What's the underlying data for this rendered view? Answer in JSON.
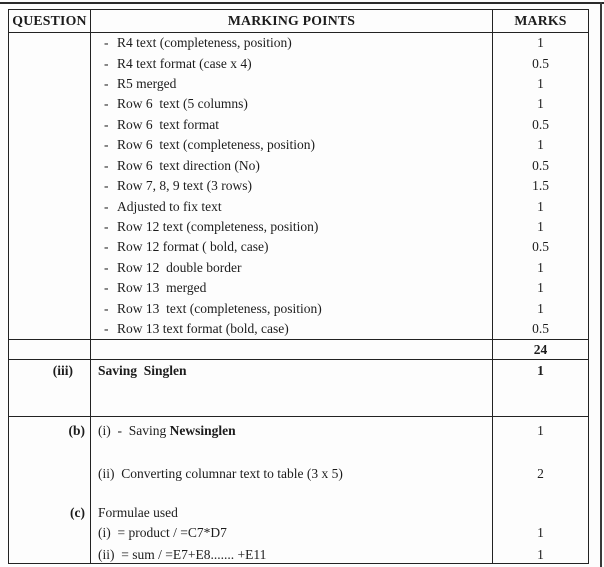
{
  "header": {
    "question": "QUESTION",
    "marking_points": "MARKING POINTS",
    "marks": "MARKS"
  },
  "bullet": "-",
  "marking_block": {
    "rows": [
      {
        "text": "R4 text (completeness, position)",
        "mark": "1"
      },
      {
        "text": "R4 text format (case x 4)",
        "mark": "0.5"
      },
      {
        "text": "R5 merged",
        "mark": "1"
      },
      {
        "text": "Row 6  text (5 columns)",
        "mark": "1"
      },
      {
        "text": "Row 6  text format",
        "mark": "0.5"
      },
      {
        "text": "Row 6  text (completeness, position)",
        "mark": "1"
      },
      {
        "text": "Row 6  text direction (No)",
        "mark": "0.5"
      },
      {
        "text": "Row 7, 8, 9 text (3 rows)",
        "mark": "1.5"
      },
      {
        "text": "Adjusted to fix text",
        "mark": "1"
      },
      {
        "text": "Row 12 text (completeness, position)",
        "mark": "1"
      },
      {
        "text": "Row 12 format ( bold, case)",
        "mark": "0.5"
      },
      {
        "text": "Row 12  double border",
        "mark": "1"
      },
      {
        "text": "Row 13  merged",
        "mark": "1"
      },
      {
        "text": "Row 13  text (completeness, position)",
        "mark": "1"
      },
      {
        "text": "Row 13 text format (bold, case)",
        "mark": "0.5"
      }
    ]
  },
  "total_row": {
    "mark": "24"
  },
  "section_iii": {
    "label": "(iii)",
    "text": "Saving  Singlen",
    "mark": "1"
  },
  "section_b": {
    "label": "(b)",
    "item1": {
      "lead": "(i)  -  Saving ",
      "bold": "Newsinglen",
      "mark": "1"
    },
    "item2": {
      "text": "(ii)  Converting columnar text to table (3 x 5)",
      "mark": "2"
    }
  },
  "section_c": {
    "label": "(c)",
    "heading": "Formulae used",
    "item1": {
      "text": "(i)  = product / =C7*D7",
      "mark": "1"
    },
    "item2": {
      "text": "(ii)  = sum / =E7+E8....... +E11",
      "mark": "1"
    }
  }
}
